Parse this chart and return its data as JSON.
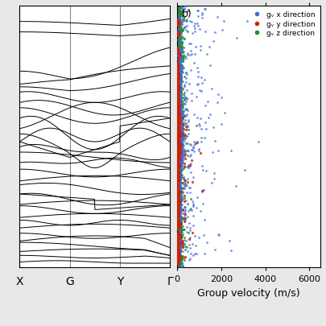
{
  "left_panel": {
    "xticklabels": [
      "X",
      "G",
      "Y",
      "Γ"
    ],
    "xtick_positions": [
      0,
      1,
      2,
      3
    ],
    "xlim": [
      0,
      3
    ],
    "ylim": [
      0,
      1
    ],
    "vline_positions": [
      0,
      1,
      2,
      3
    ],
    "background_color": "#ffffff"
  },
  "right_panel": {
    "xlabel": "Group velocity (m/s)",
    "xlim": [
      0,
      6500
    ],
    "ylim": [
      0,
      1
    ],
    "xticks": [
      0,
      2000,
      4000,
      6000
    ],
    "label_b": "b)",
    "color_x": "#4169e1",
    "color_y": "#cc2200",
    "color_z": "#228b22",
    "background_color": "#ffffff"
  },
  "fig_background": "#e8e8e8"
}
